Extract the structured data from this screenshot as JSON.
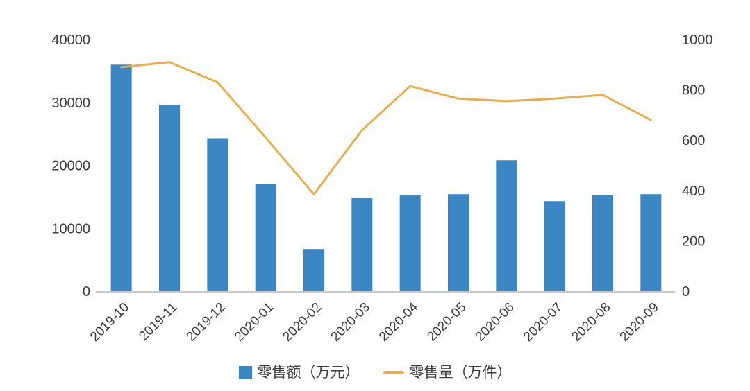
{
  "chart_data": {
    "type": "bar",
    "combo": "bar+line dual axis",
    "title": "",
    "grid": false,
    "legend_position": "bottom",
    "categories": [
      "2019-10",
      "2019-11",
      "2019-12",
      "2020-01",
      "2020-02",
      "2020-03",
      "2020-04",
      "2020-05",
      "2020-06",
      "2020-07",
      "2020-08",
      "2020-09"
    ],
    "series": [
      {
        "name": "零售额（万元）",
        "type": "bar",
        "yaxis": "left",
        "values": [
          36000,
          29600,
          24300,
          17000,
          6700,
          14800,
          15200,
          15400,
          20800,
          14300,
          15300,
          15400
        ]
      },
      {
        "name": "零售量（万件）",
        "type": "line",
        "yaxis": "right",
        "values": [
          890,
          910,
          830,
          610,
          385,
          640,
          815,
          765,
          755,
          765,
          780,
          680
        ]
      }
    ],
    "left_axis": {
      "min": 0,
      "max": 40000,
      "ticks": [
        0,
        10000,
        20000,
        30000,
        40000
      ]
    },
    "right_axis": {
      "min": 0,
      "max": 1000,
      "ticks": [
        0,
        200,
        400,
        600,
        800,
        1000
      ]
    }
  },
  "colors": {
    "bar": "#3A87C4",
    "line": "#E9AE4B",
    "axis_line": "#C9C9C9",
    "text": "#3C3C3C"
  }
}
